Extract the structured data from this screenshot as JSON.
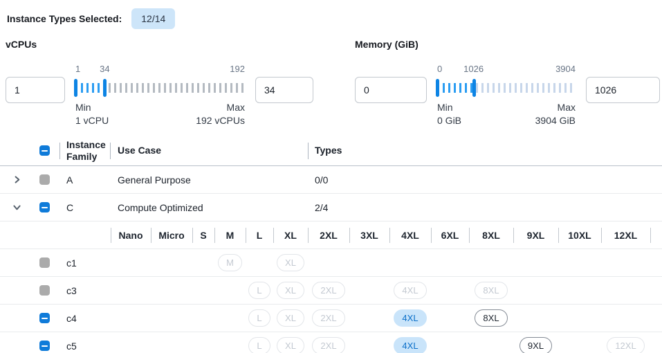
{
  "topbar": {
    "label": "Instance Types Selected:",
    "badge": "12/14"
  },
  "filters": {
    "vcpus": {
      "title": "vCPUs",
      "min_input": "1",
      "max_input": "34",
      "scale": {
        "min": "1",
        "selected": "34",
        "max": "192"
      },
      "selected_percent": 17.3,
      "min_caption": "Min",
      "min_detail": "1 vCPU",
      "max_caption": "Max",
      "max_detail": "192 vCPUs"
    },
    "memory": {
      "title": "Memory (GiB)",
      "min_input": "0",
      "max_input": "1026",
      "scale": {
        "min": "0",
        "selected": "1026",
        "max": "3904"
      },
      "selected_percent": 26.3,
      "min_caption": "Min",
      "min_detail": "0 GiB",
      "max_caption": "Max",
      "max_detail": "3904 GiB"
    }
  },
  "table": {
    "columns": {
      "family": "Instance Family",
      "use_case": "Use Case",
      "types": "Types"
    },
    "size_columns": [
      "Nano",
      "Micro",
      "S",
      "M",
      "L",
      "XL",
      "2XL",
      "3XL",
      "4XL",
      "6XL",
      "8XL",
      "9XL",
      "10XL",
      "12XL"
    ],
    "families": [
      {
        "name": "A",
        "use_case": "General Purpose",
        "types": "0/0",
        "expanded": false,
        "checkbox": "disabled"
      },
      {
        "name": "C",
        "use_case": "Compute Optimized",
        "types": "2/4",
        "expanded": true,
        "checkbox": "indeterminate"
      }
    ],
    "instances": [
      {
        "name": "c1",
        "checkbox": "disabled",
        "sizes": [
          {
            "label": "M",
            "col": 4,
            "state": "disabled"
          },
          {
            "label": "XL",
            "col": 6,
            "state": "disabled"
          }
        ]
      },
      {
        "name": "c3",
        "checkbox": "disabled",
        "sizes": [
          {
            "label": "L",
            "col": 5,
            "state": "disabled"
          },
          {
            "label": "XL",
            "col": 6,
            "state": "disabled"
          },
          {
            "label": "2XL",
            "col": 7,
            "state": "disabled"
          },
          {
            "label": "4XL",
            "col": 9,
            "state": "disabled"
          },
          {
            "label": "8XL",
            "col": 11,
            "state": "disabled"
          }
        ]
      },
      {
        "name": "c4",
        "checkbox": "indeterminate",
        "sizes": [
          {
            "label": "L",
            "col": 5,
            "state": "disabled"
          },
          {
            "label": "XL",
            "col": 6,
            "state": "disabled"
          },
          {
            "label": "2XL",
            "col": 7,
            "state": "disabled"
          },
          {
            "label": "4XL",
            "col": 9,
            "state": "selected"
          },
          {
            "label": "8XL",
            "col": 11,
            "state": "enabled"
          }
        ]
      },
      {
        "name": "c5",
        "checkbox": "indeterminate",
        "sizes": [
          {
            "label": "L",
            "col": 5,
            "state": "disabled"
          },
          {
            "label": "XL",
            "col": 6,
            "state": "disabled"
          },
          {
            "label": "2XL",
            "col": 7,
            "state": "disabled"
          },
          {
            "label": "4XL",
            "col": 9,
            "state": "selected"
          },
          {
            "label": "9XL",
            "col": 12,
            "state": "enabled"
          },
          {
            "label": "12XL",
            "col": 14,
            "state": "disabled"
          }
        ]
      }
    ]
  },
  "colors": {
    "accent_blue": "#0f7bd9",
    "slider_tick_selected": "#2b9df2",
    "slider_handle": "#0d84e4",
    "badge_bg": "#cde5f9",
    "selected_pill_bg": "#c9e4fa",
    "selected_pill_text": "#0b6fc9",
    "disabled_checkbox_gray": "#ababab"
  }
}
